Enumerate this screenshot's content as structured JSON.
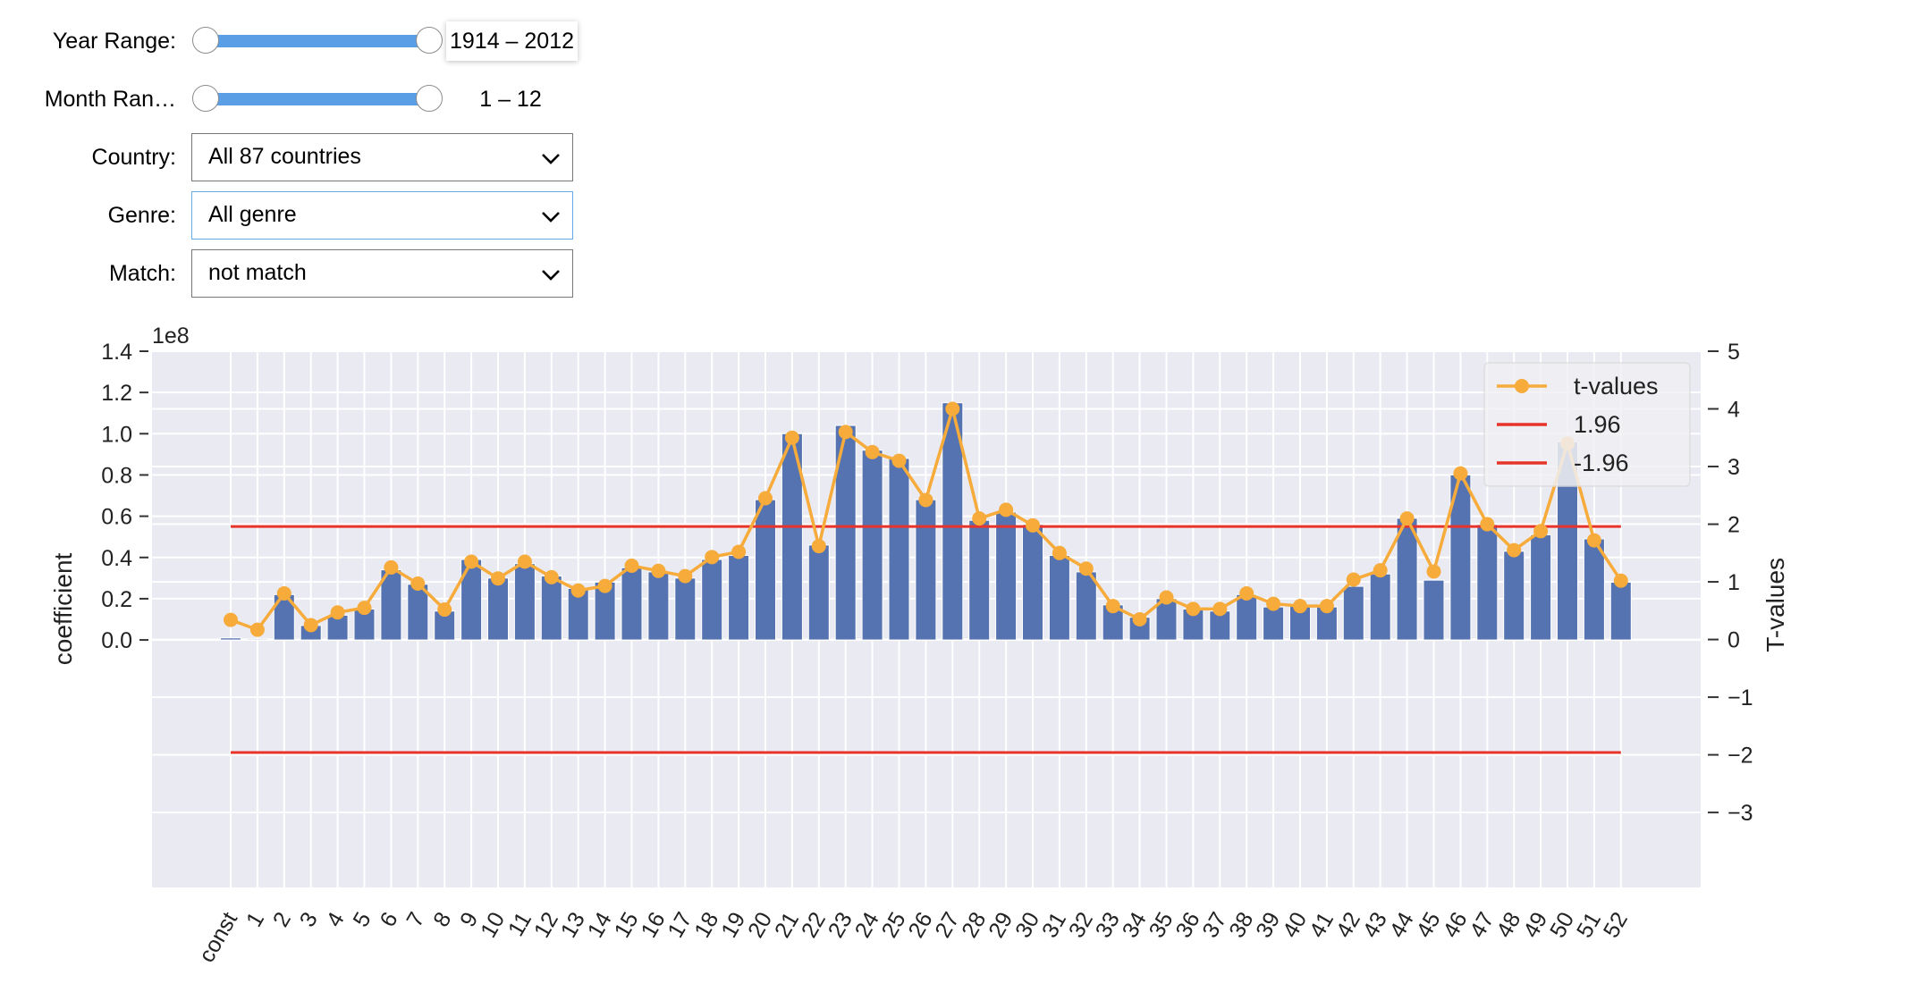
{
  "controls": {
    "year_range": {
      "label": "Year Range:",
      "readout": "1914 – 2012",
      "fill_start": 0,
      "fill_end": 1
    },
    "month_range": {
      "label": "Month Ran…",
      "readout": "1 – 12",
      "fill_start": 0,
      "fill_end": 1
    },
    "country": {
      "label": "Country:",
      "value": "All 87 countries"
    },
    "genre": {
      "label": "Genre:",
      "value": "All genre"
    },
    "match": {
      "label": "Match:",
      "value": "not match"
    }
  },
  "icons": {
    "dropdown": "chevron-down-icon"
  },
  "colors": {
    "bar": "#5573b0",
    "line": "#f6ab3b",
    "threshold": "#e8332a",
    "plot_bg": "#eaeaf2",
    "grid": "#ffffff",
    "slider_fill": "#5a9ee6"
  },
  "chart_data": {
    "type": "bar",
    "categories": [
      "const",
      "1",
      "2",
      "3",
      "4",
      "5",
      "6",
      "7",
      "8",
      "9",
      "10",
      "11",
      "12",
      "13",
      "14",
      "15",
      "16",
      "17",
      "18",
      "19",
      "20",
      "21",
      "22",
      "23",
      "24",
      "25",
      "26",
      "27",
      "28",
      "29",
      "30",
      "31",
      "32",
      "33",
      "34",
      "35",
      "36",
      "37",
      "38",
      "39",
      "40",
      "41",
      "42",
      "43",
      "44",
      "45",
      "46",
      "47",
      "48",
      "49",
      "50",
      "51",
      "52"
    ],
    "series": [
      {
        "name": "coefficient",
        "axis": "left",
        "type": "bar",
        "values": [
          0.01,
          0.005,
          0.22,
          0.07,
          0.12,
          0.15,
          0.34,
          0.27,
          0.14,
          0.39,
          0.3,
          0.37,
          0.31,
          0.25,
          0.28,
          0.35,
          0.33,
          0.3,
          0.39,
          0.41,
          0.68,
          1.0,
          0.46,
          1.04,
          0.92,
          0.88,
          0.68,
          1.15,
          0.58,
          0.62,
          0.56,
          0.41,
          0.33,
          0.17,
          0.11,
          0.2,
          0.15,
          0.14,
          0.22,
          0.16,
          0.17,
          0.16,
          0.26,
          0.32,
          0.59,
          0.29,
          0.8,
          0.56,
          0.43,
          0.51,
          0.96,
          0.49,
          0.28
        ]
      },
      {
        "name": "t-values",
        "axis": "right",
        "type": "line",
        "values": [
          0.34,
          0.17,
          0.8,
          0.25,
          0.47,
          0.55,
          1.25,
          0.97,
          0.52,
          1.35,
          1.06,
          1.35,
          1.08,
          0.85,
          0.93,
          1.28,
          1.19,
          1.1,
          1.43,
          1.52,
          2.45,
          3.5,
          1.62,
          3.6,
          3.25,
          3.1,
          2.42,
          4.0,
          2.1,
          2.25,
          1.98,
          1.5,
          1.23,
          0.58,
          0.35,
          0.73,
          0.53,
          0.53,
          0.8,
          0.62,
          0.58,
          0.58,
          1.04,
          1.2,
          2.1,
          1.18,
          2.88,
          2.0,
          1.55,
          1.88,
          3.4,
          1.72,
          1.02
        ]
      }
    ],
    "threshold_lines": [
      {
        "name": "1.96",
        "axis": "right",
        "value": 1.96
      },
      {
        "name": "-1.96",
        "axis": "right",
        "value": -1.96
      }
    ],
    "left_axis": {
      "label": "coefficient",
      "offset_text": "1e8",
      "ticks": [
        "0.0",
        "0.2",
        "0.4",
        "0.6",
        "0.8",
        "1.0",
        "1.2",
        "1.4"
      ],
      "ylim": [
        -1.2,
        1.4
      ]
    },
    "right_axis": {
      "label": "T-values",
      "ticks": [
        "5",
        "4",
        "3",
        "2",
        "1",
        "0",
        "−1",
        "−2",
        "−3"
      ],
      "ylim": [
        -4.3,
        5
      ]
    },
    "legend": {
      "placement": "top-right",
      "entries": [
        "t-values",
        "1.96",
        "-1.96"
      ]
    },
    "grid": true
  }
}
